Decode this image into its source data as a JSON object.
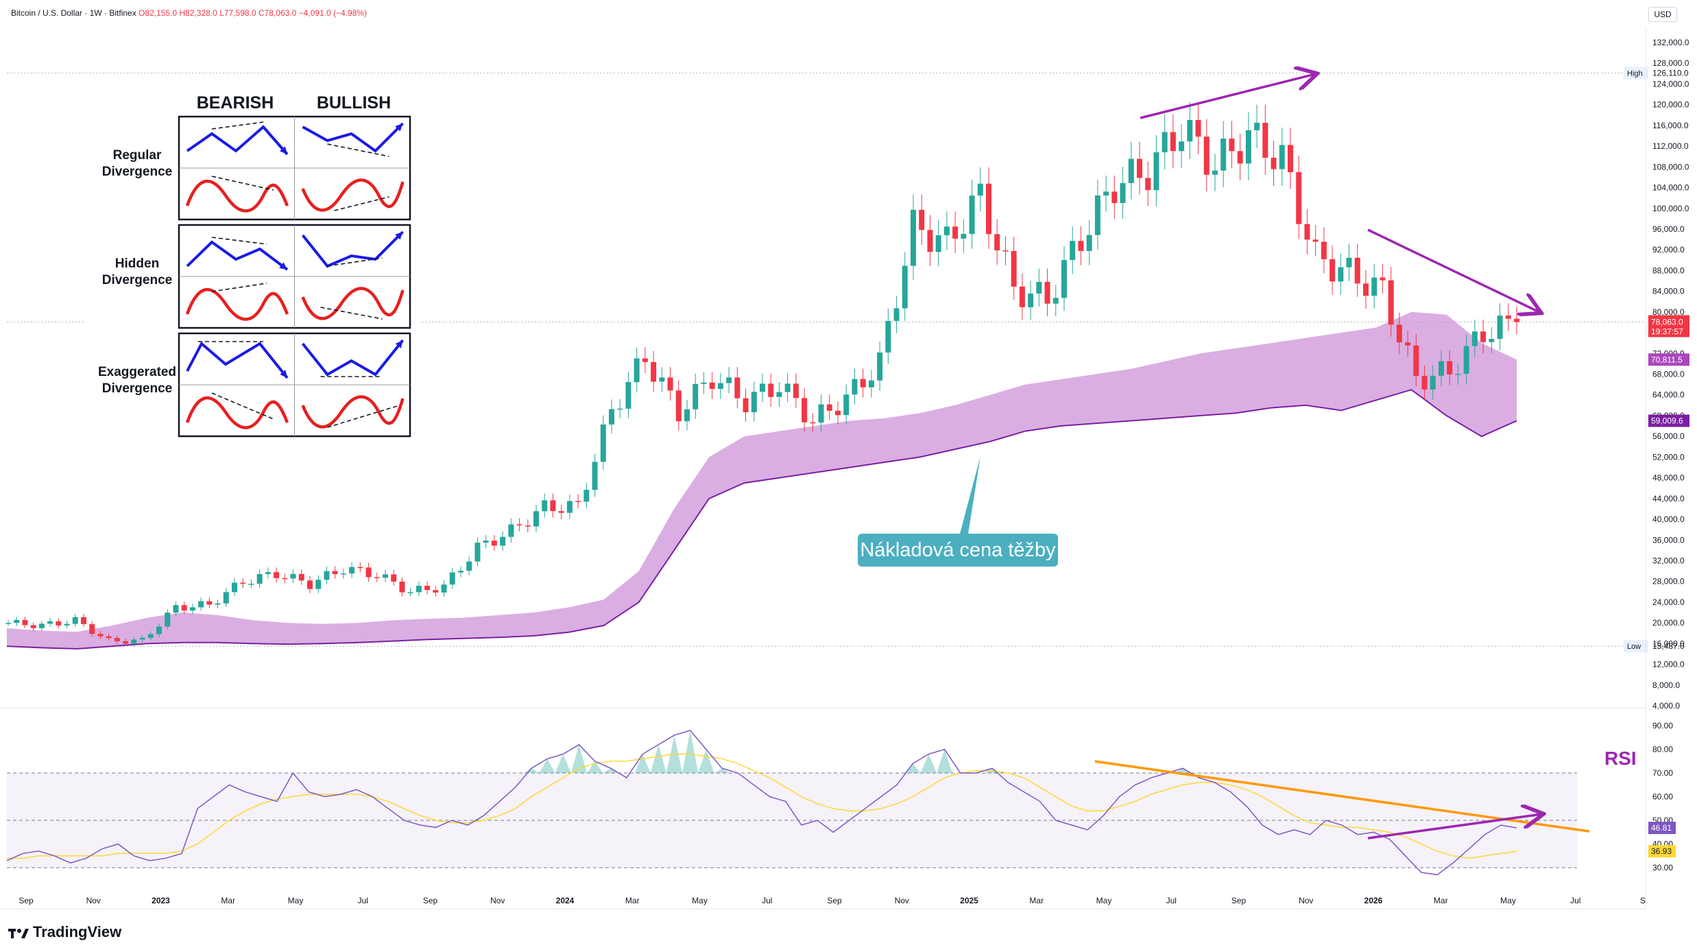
{
  "header": {
    "symbol": "Bitcoin / U.S. Dollar · 1W · Bitfinex",
    "open": "O82,155.0",
    "high": "H82,328.0",
    "low": "L77,598.0",
    "close": "C78,063.0",
    "change": "−4,091.0 (−4.98%)"
  },
  "currency": "USD",
  "brand": "TradingView",
  "callout": "Nákladová cena těžby",
  "rsi_label": "RSI",
  "divergence_table": {
    "col_bearish": "BEARISH",
    "col_bullish": "BULLISH",
    "rows": [
      "Regular\nDivergence",
      "Hidden\nDivergence",
      "Exaggerated\nDivergence"
    ]
  },
  "colors": {
    "up": "#26a69a",
    "down": "#f23645",
    "band": "#ce93d8",
    "band_line": "#7b1fa2",
    "rsi": "#7e57c2",
    "rsi_ma": "#fdd835",
    "trend_orange": "#ff9800",
    "trend_purple": "#9c27b0",
    "callout": "#4bafc0"
  },
  "chart_data": {
    "type": "candlestick",
    "x_ticks": [
      "Sep",
      "Nov",
      "2023",
      "Mar",
      "May",
      "Jul",
      "Sep",
      "Nov",
      "2024",
      "Mar",
      "May",
      "Jul",
      "Sep",
      "Nov",
      "2025",
      "Mar",
      "May",
      "Jul",
      "Sep",
      "Nov",
      "2026",
      "Mar",
      "May",
      "Jul",
      "S"
    ],
    "price_axis_ticks": [
      4000,
      8000,
      12000,
      16000,
      20000,
      24000,
      28000,
      32000,
      36000,
      40000,
      44000,
      48000,
      52000,
      56000,
      60000,
      64000,
      68000,
      72000,
      80000,
      84000,
      88000,
      92000,
      96000,
      100000,
      104000,
      108000,
      112000,
      116000,
      120000,
      124000,
      128000,
      132000
    ],
    "price_labels": {
      "high": "High",
      "high_value": "126,110.0",
      "low": "Low",
      "low_value": "15,487.0",
      "last": "78,063.0",
      "countdown": "19:37:57",
      "band_upper": "70,811.5",
      "band_lower": "59,009.6"
    },
    "price_levels": {
      "high": 126110,
      "low": 15487,
      "last": 78063,
      "band_upper": 70811.5,
      "band_lower": 59009.6
    },
    "price_series": [
      {
        "date": "2022-08",
        "close": 20000
      },
      {
        "date": "2022-09",
        "close": 19500
      },
      {
        "date": "2022-10",
        "close": 20500
      },
      {
        "date": "2022-11",
        "close": 16500
      },
      {
        "date": "2022-12",
        "close": 16600
      },
      {
        "date": "2023-01",
        "close": 23000
      },
      {
        "date": "2023-02",
        "close": 23500
      },
      {
        "date": "2023-03",
        "close": 28000
      },
      {
        "date": "2023-04",
        "close": 29500
      },
      {
        "date": "2023-05",
        "close": 27500
      },
      {
        "date": "2023-06",
        "close": 30500
      },
      {
        "date": "2023-07",
        "close": 29300
      },
      {
        "date": "2023-08",
        "close": 26000
      },
      {
        "date": "2023-09",
        "close": 27000
      },
      {
        "date": "2023-10",
        "close": 34500
      },
      {
        "date": "2023-11",
        "close": 37700
      },
      {
        "date": "2023-12",
        "close": 42300
      },
      {
        "date": "2024-01",
        "close": 42500
      },
      {
        "date": "2024-02",
        "close": 61000
      },
      {
        "date": "2024-03",
        "close": 71300
      },
      {
        "date": "2024-04",
        "close": 60600
      },
      {
        "date": "2024-05",
        "close": 67500
      },
      {
        "date": "2024-06",
        "close": 62700
      },
      {
        "date": "2024-07",
        "close": 66000
      },
      {
        "date": "2024-08",
        "close": 59000
      },
      {
        "date": "2024-09",
        "close": 63300
      },
      {
        "date": "2024-10",
        "close": 70300
      },
      {
        "date": "2024-11",
        "close": 96400
      },
      {
        "date": "2024-12",
        "close": 93400
      },
      {
        "date": "2025-01",
        "close": 102400
      },
      {
        "date": "2025-02",
        "close": 84300
      },
      {
        "date": "2025-03",
        "close": 82500
      },
      {
        "date": "2025-04",
        "close": 94200
      },
      {
        "date": "2025-05",
        "close": 104600
      },
      {
        "date": "2025-06",
        "close": 107100
      },
      {
        "date": "2025-07",
        "close": 115700
      },
      {
        "date": "2025-08",
        "close": 108200
      },
      {
        "date": "2025-09",
        "close": 114000
      },
      {
        "date": "2025-10",
        "close": 109500
      },
      {
        "date": "2025-11",
        "close": 90500
      },
      {
        "date": "2025-12",
        "close": 87500
      },
      {
        "date": "2026-01",
        "close": 84000
      },
      {
        "date": "2026-02",
        "close": 67000
      },
      {
        "date": "2026-03",
        "close": 68500
      },
      {
        "date": "2026-04",
        "close": 76000
      },
      {
        "date": "2026-05",
        "close": 78063
      }
    ],
    "mining_cost_band": {
      "upper": [
        19000,
        18500,
        18300,
        19500,
        21000,
        22000,
        21500,
        20500,
        20000,
        19800,
        20000,
        20500,
        20800,
        21000,
        21500,
        22000,
        23000,
        24500,
        30000,
        42000,
        52000,
        56000,
        57000,
        58000,
        59000,
        59500,
        60500,
        62000,
        64000,
        66000,
        67000,
        68000,
        69000,
        70500,
        72000,
        73000,
        74000,
        75000,
        76000,
        77000,
        80000,
        79500,
        74000,
        70811.5
      ],
      "lower": [
        15500,
        15200,
        15000,
        15500,
        16000,
        16200,
        16200,
        16000,
        15900,
        16000,
        16200,
        16500,
        16800,
        17000,
        17200,
        17500,
        18200,
        19500,
        24000,
        34000,
        44000,
        47000,
        48000,
        49000,
        50000,
        51000,
        52000,
        53500,
        55000,
        57000,
        58000,
        58500,
        59000,
        59500,
        60000,
        60500,
        61500,
        62000,
        61000,
        63000,
        65000,
        60000,
        56000,
        59009.6
      ]
    },
    "rsi": {
      "levels": [
        30,
        50,
        70
      ],
      "axis_ticks": [
        30,
        40,
        50,
        60,
        70,
        80,
        90
      ],
      "last_value": "46.81",
      "ma_value": "36.93",
      "values": [
        33,
        36,
        37,
        35,
        32,
        34,
        38,
        40,
        35,
        33,
        34,
        36,
        55,
        60,
        65,
        62,
        60,
        58,
        70,
        62,
        60,
        61,
        63,
        60,
        55,
        50,
        48,
        47,
        50,
        48,
        52,
        58,
        64,
        72,
        76,
        78,
        82,
        75,
        72,
        68,
        78,
        82,
        86,
        88,
        80,
        72,
        70,
        65,
        60,
        58,
        48,
        50,
        45,
        50,
        55,
        60,
        65,
        74,
        78,
        80,
        70,
        70,
        72,
        66,
        62,
        58,
        50,
        48,
        46,
        52,
        60,
        65,
        68,
        70,
        72,
        68,
        66,
        62,
        56,
        48,
        44,
        46,
        44,
        50,
        48,
        44,
        45,
        42,
        35,
        28,
        27,
        32,
        38,
        44,
        48,
        46.81
      ],
      "ma_values": [
        34,
        34,
        35,
        35,
        35,
        35,
        35,
        36,
        36,
        36,
        36,
        37,
        40,
        45,
        50,
        54,
        57,
        59,
        60,
        61,
        61,
        61,
        61,
        60,
        58,
        55,
        52,
        50,
        49,
        49,
        50,
        52,
        55,
        60,
        64,
        68,
        72,
        74,
        75,
        75,
        76,
        77,
        78,
        78,
        77,
        76,
        74,
        71,
        68,
        64,
        60,
        57,
        55,
        54,
        54,
        55,
        57,
        60,
        64,
        68,
        70,
        71,
        71,
        70,
        68,
        64,
        60,
        56,
        54,
        54,
        56,
        58,
        61,
        63,
        65,
        66,
        66,
        65,
        63,
        60,
        56,
        52,
        49,
        48,
        47,
        47,
        46,
        45,
        43,
        40,
        37,
        35,
        34,
        35,
        36,
        36.93
      ]
    }
  }
}
